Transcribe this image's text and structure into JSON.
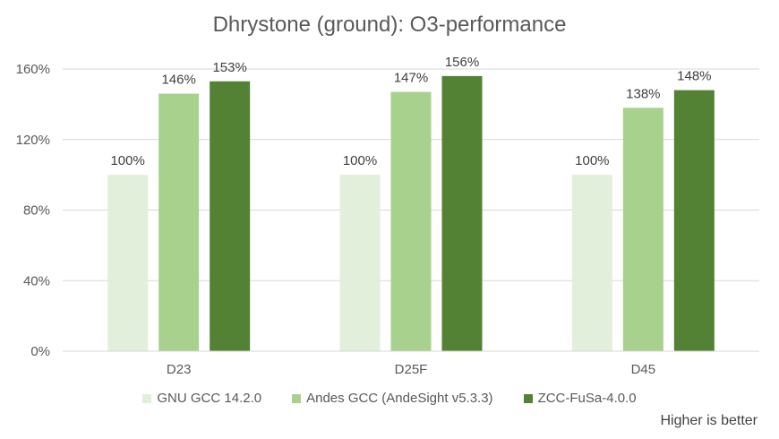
{
  "chart_data": {
    "type": "bar",
    "title": "Dhrystone (ground): O3-performance",
    "categories": [
      "D23",
      "D25F",
      "D45"
    ],
    "series": [
      {
        "name": "GNU GCC 14.2.0",
        "values": [
          100,
          100,
          100
        ],
        "color": "#e2efda"
      },
      {
        "name": "Andes GCC (AndeSight v5.3.3)",
        "values": [
          146,
          147,
          138
        ],
        "color": "#a9d18e"
      },
      {
        "name": "ZCC-FuSa-4.0.0",
        "values": [
          153,
          156,
          148
        ],
        "color": "#548235"
      }
    ],
    "data_labels": [
      [
        "100%",
        "146%",
        "153%"
      ],
      [
        "100%",
        "147%",
        "156%"
      ],
      [
        "100%",
        "138%",
        "148%"
      ]
    ],
    "yticks": [
      0,
      40,
      80,
      120,
      160
    ],
    "ytick_labels": [
      "0%",
      "40%",
      "80%",
      "120%",
      "160%"
    ],
    "ylim": [
      0,
      160
    ],
    "grid": true,
    "legend_position": "bottom",
    "footnote": "Higher is better"
  }
}
